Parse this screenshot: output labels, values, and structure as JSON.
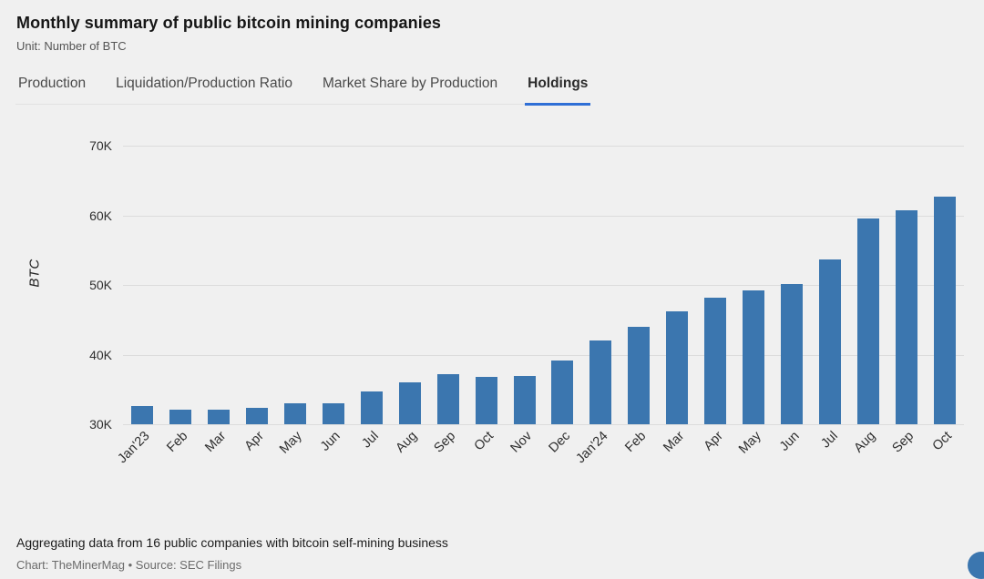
{
  "header": {
    "title": "Monthly summary of public bitcoin mining companies",
    "subtitle": "Unit: Number of BTC"
  },
  "tabs": [
    {
      "label": "Production",
      "active": false
    },
    {
      "label": "Liquidation/Production Ratio",
      "active": false
    },
    {
      "label": "Market Share by Production",
      "active": false
    },
    {
      "label": "Holdings",
      "active": true
    }
  ],
  "chart_data": {
    "type": "bar",
    "title": "Holdings",
    "ylabel": "BTC",
    "categories": [
      "Jan'23",
      "Feb",
      "Mar",
      "Apr",
      "May",
      "Jun",
      "Jul",
      "Aug",
      "Sep",
      "Oct",
      "Nov",
      "Dec",
      "Jan'24",
      "Feb",
      "Mar",
      "Apr",
      "May",
      "Jun",
      "Jul",
      "Aug",
      "Sep",
      "Oct"
    ],
    "values": [
      32600,
      32100,
      32100,
      32400,
      33000,
      33000,
      34700,
      36000,
      37200,
      36800,
      37000,
      39200,
      42000,
      44000,
      46200,
      48200,
      49200,
      50200,
      53700,
      59500,
      60700,
      62700
    ],
    "ylim": [
      30000,
      70000
    ],
    "yticks": [
      70000,
      60000,
      50000,
      40000,
      30000
    ],
    "ytick_labels": [
      "70K",
      "60K",
      "50K",
      "40K",
      "30K"
    ],
    "grid": true,
    "legend": "none",
    "bar_color": "#3b76af"
  },
  "colors": {
    "bar": "#3b76af",
    "accent": "#2f6fd6",
    "background": "#f0f0f0",
    "gridline": "#dcdcdc"
  },
  "footer": {
    "note": "Aggregating data from 16 public companies with bitcoin self-mining business",
    "credit": "Chart: TheMinerMag • Source: SEC Filings"
  }
}
